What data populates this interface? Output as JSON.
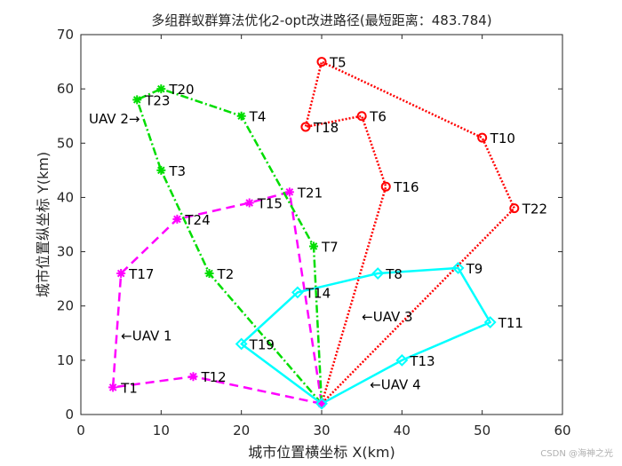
{
  "chart_data": {
    "type": "line",
    "title": "多组群蚁群算法优化2-opt改进路径(最短距离：483.784)",
    "xlabel": "城市位置横坐标 X(km)",
    "ylabel": "城市位置纵坐标 Y(km)",
    "xlim": [
      0,
      60
    ],
    "ylim": [
      0,
      70
    ],
    "xticks": [
      "0",
      "10",
      "20",
      "30",
      "40",
      "50",
      "60"
    ],
    "yticks": [
      "0",
      "10",
      "20",
      "30",
      "40",
      "50",
      "60",
      "70"
    ],
    "grid": false,
    "depot": {
      "label": "",
      "x": 30,
      "y": 2
    },
    "routes": [
      {
        "color": "#ff00ff",
        "marker": "star",
        "dash": "10,6",
        "path": [
          [
            30,
            2
          ],
          [
            14,
            7
          ],
          [
            4,
            5
          ],
          [
            5,
            26
          ],
          [
            12,
            36
          ],
          [
            21,
            39
          ],
          [
            26,
            41
          ],
          [
            30,
            2
          ]
        ]
      },
      {
        "color": "#00dd00",
        "marker": "star",
        "dash": "9,3,2,3",
        "path": [
          [
            30,
            2
          ],
          [
            16,
            26
          ],
          [
            10,
            45
          ],
          [
            7,
            58
          ],
          [
            10,
            60
          ],
          [
            20,
            55
          ],
          [
            29,
            31
          ],
          [
            30,
            2
          ]
        ]
      },
      {
        "color": "#ff0000",
        "marker": "circle",
        "dash": "2,2",
        "path": [
          [
            30,
            2
          ],
          [
            38,
            42
          ],
          [
            35,
            55
          ],
          [
            28,
            53
          ],
          [
            30,
            65
          ],
          [
            50,
            51
          ],
          [
            54,
            38
          ],
          [
            30,
            2
          ]
        ]
      },
      {
        "color": "#00ffff",
        "marker": "diamond",
        "dash": "",
        "path": [
          [
            30,
            2
          ],
          [
            20,
            13
          ],
          [
            27,
            22.5
          ],
          [
            37,
            26
          ],
          [
            47,
            27
          ],
          [
            51,
            17
          ],
          [
            40,
            10
          ],
          [
            30,
            2
          ]
        ]
      }
    ],
    "point_labels": [
      {
        "text": "T1",
        "x": 4,
        "y": 5
      },
      {
        "text": "T2",
        "x": 16,
        "y": 26
      },
      {
        "text": "T3",
        "x": 10,
        "y": 45
      },
      {
        "text": "T4",
        "x": 20,
        "y": 55
      },
      {
        "text": "T5",
        "x": 30,
        "y": 65
      },
      {
        "text": "T6",
        "x": 35,
        "y": 55
      },
      {
        "text": "T7",
        "x": 29,
        "y": 31
      },
      {
        "text": "T8",
        "x": 37,
        "y": 26
      },
      {
        "text": "T9",
        "x": 47,
        "y": 27
      },
      {
        "text": "T10",
        "x": 50,
        "y": 51
      },
      {
        "text": "T11",
        "x": 51,
        "y": 17
      },
      {
        "text": "T12",
        "x": 14,
        "y": 7
      },
      {
        "text": "T13",
        "x": 40,
        "y": 10
      },
      {
        "text": "T14",
        "x": 27,
        "y": 22.5
      },
      {
        "text": "T15",
        "x": 21,
        "y": 39
      },
      {
        "text": "T16",
        "x": 38,
        "y": 42
      },
      {
        "text": "T17",
        "x": 5,
        "y": 26
      },
      {
        "text": "T18",
        "x": 28,
        "y": 53
      },
      {
        "text": "T19",
        "x": 20,
        "y": 13
      },
      {
        "text": "T20",
        "x": 10,
        "y": 60
      },
      {
        "text": "T21",
        "x": 26,
        "y": 41
      },
      {
        "text": "T22",
        "x": 54,
        "y": 38
      },
      {
        "text": "T23",
        "x": 7,
        "y": 58
      },
      {
        "text": "T24",
        "x": 12,
        "y": 36
      }
    ],
    "annotations": [
      {
        "text": "UAV 2→",
        "x": 1,
        "y": 54.5
      },
      {
        "text": "←UAV 1",
        "x": 5,
        "y": 14.5
      },
      {
        "text": "←UAV 3",
        "x": 35,
        "y": 18
      },
      {
        "text": "←UAV 4",
        "x": 36,
        "y": 5.5
      }
    ]
  },
  "watermark": "CSDN @海神之光"
}
